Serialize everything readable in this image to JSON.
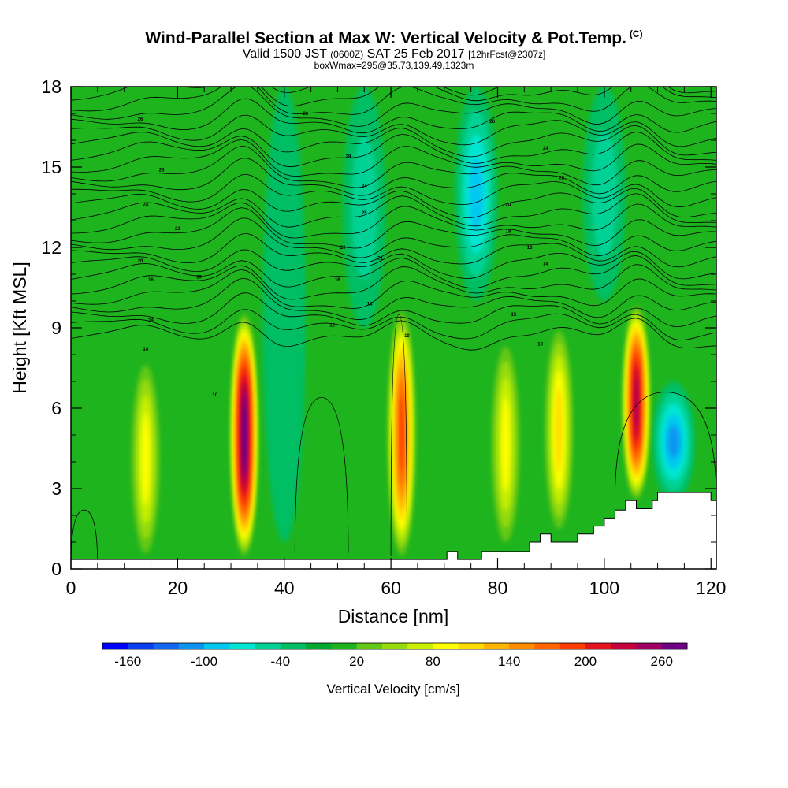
{
  "title": {
    "main": "Wind-Parallel Section at Max W: Vertical Velocity & Pot.Temp.",
    "copyright": "(C)",
    "valid_prefix": "Valid 1500 JST",
    "valid_utc": "(0600Z)",
    "valid_date": "SAT 25 Feb 2017",
    "forecast": "[12hrFcst@2307z]",
    "box": "boxWmax=295@35.73,139.49,1323m"
  },
  "chart_data": {
    "type": "heatmap",
    "xlabel": "Distance [nm]",
    "ylabel": "Height [Kft MSL]",
    "xlim": [
      0,
      121
    ],
    "ylim": [
      0,
      18
    ],
    "x_ticks": [
      "0",
      "20",
      "40",
      "60",
      "80",
      "100",
      "120"
    ],
    "y_ticks": [
      "0",
      "3",
      "6",
      "9",
      "12",
      "15",
      "18"
    ],
    "colorbar": {
      "title": "Vertical Velocity [cm/s]",
      "tick_labels": [
        "-160",
        "-100",
        "-40",
        "20",
        "80",
        "140",
        "200",
        "260"
      ],
      "bin_edges": [
        -180,
        -160,
        -140,
        -120,
        -100,
        -80,
        -60,
        -40,
        -20,
        0,
        20,
        40,
        60,
        80,
        100,
        120,
        140,
        160,
        180,
        200,
        220,
        240,
        260,
        280
      ],
      "colors": [
        "#0000ff",
        "#0a3cf0",
        "#1468f0",
        "#0a96f0",
        "#00c8f0",
        "#00e6d2",
        "#00d296",
        "#00be64",
        "#00aa32",
        "#1eb41e",
        "#64c814",
        "#96dc0a",
        "#c8f000",
        "#ffff00",
        "#ffdc00",
        "#ffb400",
        "#ff8c00",
        "#ff6400",
        "#ff3c00",
        "#e6141e",
        "#c8003c",
        "#a00064",
        "#6e0082"
      ]
    },
    "updrafts": [
      {
        "x": 14,
        "z_bottom": 0.6,
        "z_top": 7.6,
        "peak_w": 90
      },
      {
        "x": 32.5,
        "z_bottom": 0.5,
        "z_top": 9.5,
        "peak_w": 295
      },
      {
        "x": 62,
        "z_bottom": 0.5,
        "z_top": 9.6,
        "peak_w": 190
      },
      {
        "x": 81.5,
        "z_bottom": 1.0,
        "z_top": 8.3,
        "peak_w": 90
      },
      {
        "x": 91.5,
        "z_bottom": 1.5,
        "z_top": 8.9,
        "peak_w": 100
      },
      {
        "x": 106,
        "z_bottom": 2.6,
        "z_top": 9.8,
        "peak_w": 240
      }
    ],
    "downdrafts": [
      {
        "x": 40,
        "z_bottom": 1.0,
        "z_top": 18,
        "min_w": -20
      },
      {
        "x": 55,
        "z_bottom": 9.0,
        "z_top": 18,
        "min_w": -40
      },
      {
        "x": 76,
        "z_bottom": 10.0,
        "z_top": 18,
        "min_w": -80
      },
      {
        "x": 100,
        "z_bottom": 10.0,
        "z_top": 18,
        "min_w": -40
      },
      {
        "x": 113,
        "z_bottom": 2.5,
        "z_top": 7.0,
        "min_w": -100
      }
    ],
    "isentrope_labels": [
      {
        "text": "10",
        "x": 27,
        "z": 6.5
      },
      {
        "text": "10",
        "x": 63,
        "z": 8.7
      },
      {
        "text": "10",
        "x": 88,
        "z": 8.4
      },
      {
        "text": "12",
        "x": 49,
        "z": 9.1
      },
      {
        "text": "14",
        "x": 14,
        "z": 8.2
      },
      {
        "text": "14",
        "x": 15,
        "z": 9.3
      },
      {
        "text": "14",
        "x": 56,
        "z": 9.9
      },
      {
        "text": "15",
        "x": 83,
        "z": 9.5
      },
      {
        "text": "16",
        "x": 15,
        "z": 10.8
      },
      {
        "text": "16",
        "x": 50,
        "z": 10.8
      },
      {
        "text": "19",
        "x": 24,
        "z": 10.9
      },
      {
        "text": "14",
        "x": 89,
        "z": 11.4
      },
      {
        "text": "20",
        "x": 13,
        "z": 11.5
      },
      {
        "text": "16",
        "x": 86,
        "z": 12.0
      },
      {
        "text": "20",
        "x": 51,
        "z": 12.0
      },
      {
        "text": "21",
        "x": 58,
        "z": 11.6
      },
      {
        "text": "22",
        "x": 20,
        "z": 12.7
      },
      {
        "text": "18",
        "x": 82,
        "z": 12.6
      },
      {
        "text": "24",
        "x": 14,
        "z": 13.6
      },
      {
        "text": "25",
        "x": 55,
        "z": 13.3
      },
      {
        "text": "20",
        "x": 82,
        "z": 13.6
      },
      {
        "text": "24",
        "x": 55,
        "z": 14.3
      },
      {
        "text": "25",
        "x": 17,
        "z": 14.9
      },
      {
        "text": "28",
        "x": 52,
        "z": 15.4
      },
      {
        "text": "22",
        "x": 92,
        "z": 14.6
      },
      {
        "text": "24",
        "x": 89,
        "z": 15.7
      },
      {
        "text": "26",
        "x": 13,
        "z": 16.8
      },
      {
        "text": "26",
        "x": 44,
        "z": 17.0
      },
      {
        "text": "26",
        "x": 79,
        "z": 16.7
      }
    ],
    "terrain": [
      [
        0,
        0.35
      ],
      [
        70.5,
        0.35
      ],
      [
        70.5,
        0.65
      ],
      [
        72.5,
        0.65
      ],
      [
        72.5,
        0.35
      ],
      [
        77,
        0.35
      ],
      [
        77,
        0.65
      ],
      [
        86,
        0.65
      ],
      [
        86,
        1.0
      ],
      [
        88,
        1.0
      ],
      [
        88,
        1.3
      ],
      [
        90,
        1.3
      ],
      [
        90,
        1.0
      ],
      [
        95,
        1.0
      ],
      [
        95,
        1.3
      ],
      [
        98,
        1.3
      ],
      [
        98,
        1.6
      ],
      [
        100,
        1.6
      ],
      [
        100,
        1.9
      ],
      [
        102,
        1.9
      ],
      [
        102,
        2.2
      ],
      [
        104,
        2.2
      ],
      [
        104,
        2.55
      ],
      [
        106,
        2.55
      ],
      [
        106,
        2.25
      ],
      [
        109,
        2.25
      ],
      [
        109,
        2.55
      ],
      [
        110,
        2.55
      ],
      [
        110,
        2.85
      ],
      [
        120,
        2.85
      ],
      [
        120,
        2.55
      ],
      [
        121,
        2.55
      ]
    ]
  }
}
